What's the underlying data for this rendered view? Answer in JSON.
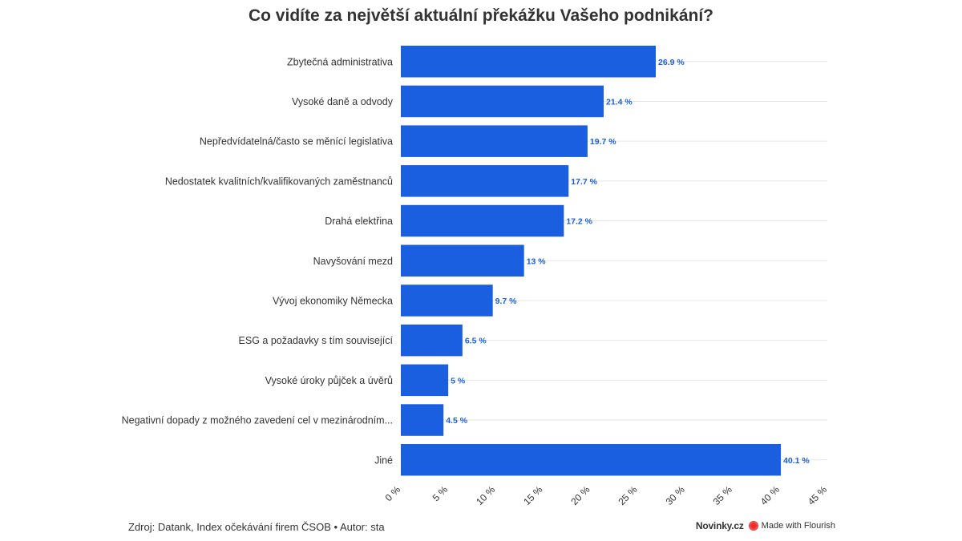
{
  "title": "Co vidíte za největší aktuální překážku Vašeho podnikání?",
  "footer": {
    "source": "Zdroj: Datank, Index očekávání firem ČSOB • Autor: sta",
    "brand": "Novinky.cz",
    "flourish": "Made with Flourish"
  },
  "colors": {
    "bar": "#1a5fe0",
    "label": "#1a5fe0",
    "grid": "#e6e6e6",
    "text": "#333333"
  },
  "chart_data": {
    "type": "bar",
    "orientation": "horizontal",
    "title": "Co vidíte za největší aktuální překážku Vašeho podnikání?",
    "xlabel": "",
    "ylabel": "",
    "xlim": [
      0,
      45
    ],
    "grid": true,
    "unit_suffix": " %",
    "ticks": [
      0,
      5,
      10,
      15,
      20,
      25,
      30,
      35,
      40,
      45
    ],
    "tick_labels": [
      "0 %",
      "5 %",
      "10 %",
      "15 %",
      "20 %",
      "25 %",
      "30 %",
      "35 %",
      "40 %",
      "45 %"
    ],
    "categories": [
      "Zbytečná administrativa",
      "Vysoké daně a odvody",
      "Nepředvídatelná/často se měnící legislativa",
      "Nedostatek kvalitních/kvalifikovaných zaměstnanců",
      "Drahá elektřina",
      "Navyšování mezd",
      "Vývoj ekonomiky Německa",
      "ESG a požadavky s tím související",
      "Vysoké úroky půjček a úvěrů",
      "Negativní dopady z možného zavedení cel v mezinárodním...",
      "Jiné"
    ],
    "values": [
      26.9,
      21.4,
      19.7,
      17.7,
      17.2,
      13,
      9.7,
      6.5,
      5,
      4.5,
      40.1
    ],
    "value_labels": [
      "26.9 %",
      "21.4 %",
      "19.7 %",
      "17.7 %",
      "17.2 %",
      "13 %",
      "9.7 %",
      "6.5 %",
      "5 %",
      "4.5 %",
      "40.1 %"
    ]
  }
}
